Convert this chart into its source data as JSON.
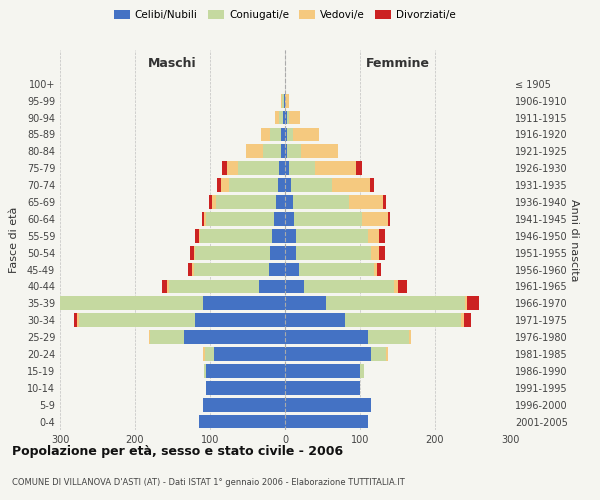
{
  "age_groups": [
    "0-4",
    "5-9",
    "10-14",
    "15-19",
    "20-24",
    "25-29",
    "30-34",
    "35-39",
    "40-44",
    "45-49",
    "50-54",
    "55-59",
    "60-64",
    "65-69",
    "70-74",
    "75-79",
    "80-84",
    "85-89",
    "90-94",
    "95-99",
    "100+"
  ],
  "birth_years": [
    "2001-2005",
    "1996-2000",
    "1991-1995",
    "1986-1990",
    "1981-1985",
    "1976-1980",
    "1971-1975",
    "1966-1970",
    "1961-1965",
    "1956-1960",
    "1951-1955",
    "1946-1950",
    "1941-1945",
    "1936-1940",
    "1931-1935",
    "1926-1930",
    "1921-1925",
    "1916-1920",
    "1911-1915",
    "1906-1910",
    "≤ 1905"
  ],
  "maschi": {
    "celibi": [
      115,
      110,
      105,
      105,
      95,
      135,
      120,
      110,
      35,
      22,
      20,
      18,
      15,
      12,
      10,
      8,
      5,
      5,
      3,
      2,
      0
    ],
    "coniugati": [
      0,
      0,
      0,
      3,
      12,
      45,
      155,
      195,
      120,
      100,
      100,
      95,
      90,
      80,
      65,
      55,
      25,
      15,
      5,
      2,
      0
    ],
    "vedovi": [
      0,
      0,
      0,
      0,
      2,
      2,
      2,
      2,
      2,
      2,
      2,
      2,
      3,
      5,
      10,
      15,
      22,
      12,
      5,
      2,
      0
    ],
    "divorziati": [
      0,
      0,
      0,
      0,
      0,
      0,
      5,
      7,
      7,
      5,
      5,
      5,
      3,
      5,
      6,
      6,
      0,
      0,
      0,
      0,
      0
    ]
  },
  "femmine": {
    "nubili": [
      110,
      115,
      100,
      100,
      115,
      110,
      80,
      55,
      25,
      18,
      15,
      15,
      12,
      10,
      8,
      5,
      3,
      2,
      2,
      0,
      0
    ],
    "coniugate": [
      0,
      0,
      0,
      5,
      20,
      55,
      155,
      185,
      120,
      100,
      100,
      95,
      90,
      75,
      55,
      35,
      18,
      8,
      3,
      0,
      0
    ],
    "vedove": [
      0,
      0,
      0,
      0,
      2,
      3,
      3,
      3,
      5,
      5,
      10,
      15,
      35,
      45,
      50,
      55,
      50,
      35,
      15,
      5,
      0
    ],
    "divorziate": [
      0,
      0,
      0,
      0,
      0,
      0,
      10,
      15,
      12,
      5,
      8,
      8,
      3,
      5,
      5,
      8,
      0,
      0,
      0,
      0,
      0
    ]
  },
  "colors": {
    "celibi_nubili": "#4472c4",
    "coniugati": "#c5d9a0",
    "vedovi": "#f5c97f",
    "divorziati": "#cc2222"
  },
  "xlim": 300,
  "title": "Popolazione per età, sesso e stato civile - 2006",
  "subtitle": "COMUNE DI VILLANOVA D'ASTI (AT) - Dati ISTAT 1° gennaio 2006 - Elaborazione TUTTITALIA.IT",
  "ylabel_left": "Fasce di età",
  "ylabel_right": "Anni di nascita",
  "xlabel_left": "Maschi",
  "xlabel_right": "Femmine",
  "background_color": "#f5f5f0",
  "grid_color": "#bbbbbb"
}
